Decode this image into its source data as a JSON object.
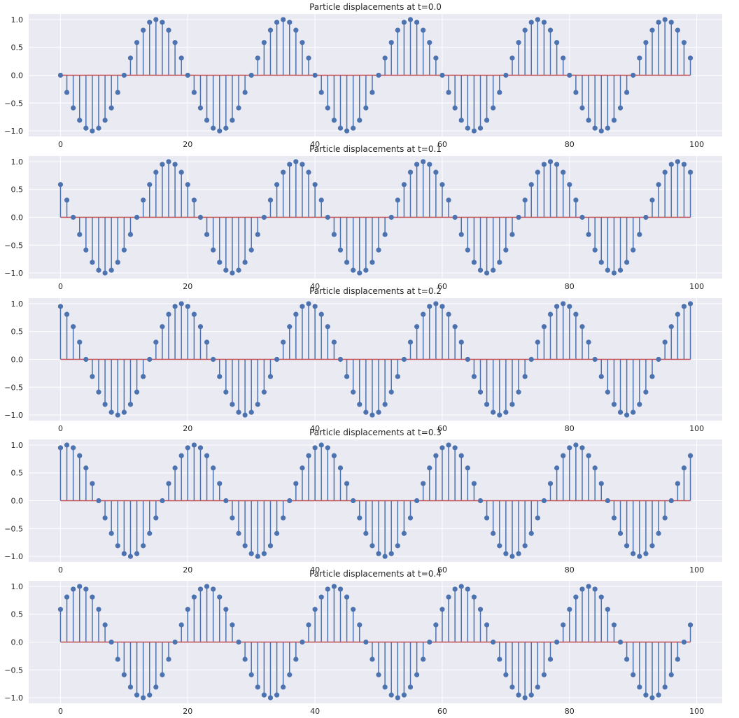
{
  "chart_data": [
    {
      "type": "stem",
      "title": "Particle displacements at t=0.0",
      "t": 0.0,
      "n_points": 100,
      "formula": "-sin(2*pi*(x/20 - t))",
      "xlim": [
        -5,
        104
      ],
      "ylim": [
        -1.1,
        1.1
      ],
      "xticks": [
        0,
        20,
        40,
        60,
        80,
        100
      ],
      "yticks": [
        1.0,
        0.5,
        0.0,
        -0.5,
        -1.0
      ],
      "grid": true
    },
    {
      "type": "stem",
      "title": "Particle displacements at t=0.1",
      "t": 0.1,
      "n_points": 100,
      "formula": "-sin(2*pi*(x/20 - t))",
      "xlim": [
        -5,
        104
      ],
      "ylim": [
        -1.1,
        1.1
      ],
      "xticks": [
        0,
        20,
        40,
        60,
        80,
        100
      ],
      "yticks": [
        1.0,
        0.5,
        0.0,
        -0.5,
        -1.0
      ],
      "grid": true
    },
    {
      "type": "stem",
      "title": "Particle displacements at t=0.2",
      "t": 0.2,
      "n_points": 100,
      "formula": "-sin(2*pi*(x/20 - t))",
      "xlim": [
        -5,
        104
      ],
      "ylim": [
        -1.1,
        1.1
      ],
      "xticks": [
        0,
        20,
        40,
        60,
        80,
        100
      ],
      "yticks": [
        1.0,
        0.5,
        0.0,
        -0.5,
        -1.0
      ],
      "grid": true
    },
    {
      "type": "stem",
      "title": "Particle displacements at t=0.3",
      "t": 0.3,
      "n_points": 100,
      "formula": "-sin(2*pi*(x/20 - t))",
      "xlim": [
        -5,
        104
      ],
      "ylim": [
        -1.1,
        1.1
      ],
      "xticks": [
        0,
        20,
        40,
        60,
        80,
        100
      ],
      "yticks": [
        1.0,
        0.5,
        0.0,
        -0.5,
        -1.0
      ],
      "grid": true
    },
    {
      "type": "stem",
      "title": "Particle displacements at t=0.4",
      "t": 0.4,
      "n_points": 100,
      "formula": "-sin(2*pi*(x/20 - t))",
      "xlim": [
        -5,
        104
      ],
      "ylim": [
        -1.1,
        1.1
      ],
      "xticks": [
        0,
        20,
        40,
        60,
        80,
        100
      ],
      "yticks": [
        1.0,
        0.5,
        0.0,
        -0.5,
        -1.0
      ],
      "grid": true
    }
  ],
  "colors": {
    "background": "#eaeaf2",
    "grid": "#ffffff",
    "stem": "#4c72b0",
    "baseline": "#c44e52",
    "text": "#262626"
  }
}
